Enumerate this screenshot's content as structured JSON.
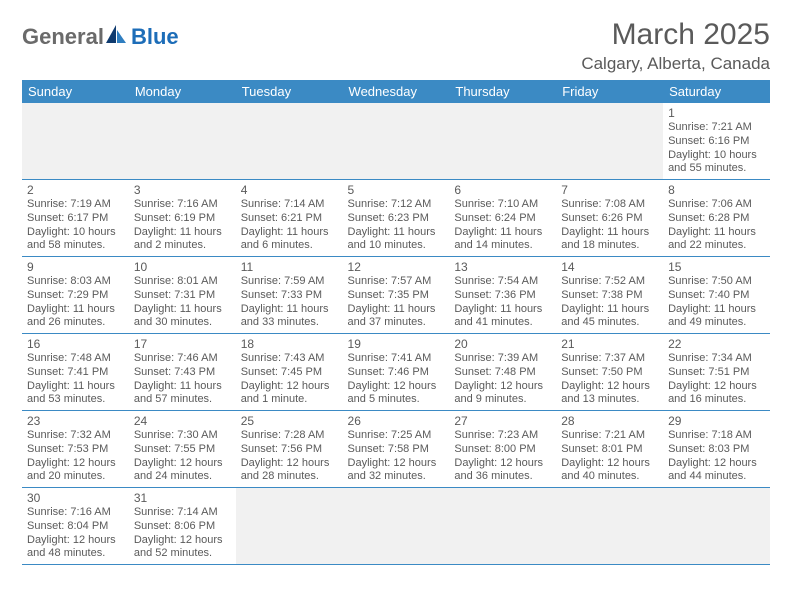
{
  "logo": {
    "word1": "General",
    "word2": "Blue"
  },
  "title": "March 2025",
  "subtitle": "Calgary, Alberta, Canada",
  "colors": {
    "header_bg": "#3b8ac4",
    "header_fg": "#ffffff",
    "text": "#5a5a5a",
    "rule": "#3b8ac4",
    "blank_bg": "#f1f1f1",
    "logo_gray": "#6a6a6a",
    "logo_blue": "#1d6db8"
  },
  "day_headers": [
    "Sunday",
    "Monday",
    "Tuesday",
    "Wednesday",
    "Thursday",
    "Friday",
    "Saturday"
  ],
  "weeks": [
    [
      null,
      null,
      null,
      null,
      null,
      null,
      {
        "d": "1",
        "sr": "Sunrise: 7:21 AM",
        "ss": "Sunset: 6:16 PM",
        "dl1": "Daylight: 10 hours",
        "dl2": "and 55 minutes."
      }
    ],
    [
      {
        "d": "2",
        "sr": "Sunrise: 7:19 AM",
        "ss": "Sunset: 6:17 PM",
        "dl1": "Daylight: 10 hours",
        "dl2": "and 58 minutes."
      },
      {
        "d": "3",
        "sr": "Sunrise: 7:16 AM",
        "ss": "Sunset: 6:19 PM",
        "dl1": "Daylight: 11 hours",
        "dl2": "and 2 minutes."
      },
      {
        "d": "4",
        "sr": "Sunrise: 7:14 AM",
        "ss": "Sunset: 6:21 PM",
        "dl1": "Daylight: 11 hours",
        "dl2": "and 6 minutes."
      },
      {
        "d": "5",
        "sr": "Sunrise: 7:12 AM",
        "ss": "Sunset: 6:23 PM",
        "dl1": "Daylight: 11 hours",
        "dl2": "and 10 minutes."
      },
      {
        "d": "6",
        "sr": "Sunrise: 7:10 AM",
        "ss": "Sunset: 6:24 PM",
        "dl1": "Daylight: 11 hours",
        "dl2": "and 14 minutes."
      },
      {
        "d": "7",
        "sr": "Sunrise: 7:08 AM",
        "ss": "Sunset: 6:26 PM",
        "dl1": "Daylight: 11 hours",
        "dl2": "and 18 minutes."
      },
      {
        "d": "8",
        "sr": "Sunrise: 7:06 AM",
        "ss": "Sunset: 6:28 PM",
        "dl1": "Daylight: 11 hours",
        "dl2": "and 22 minutes."
      }
    ],
    [
      {
        "d": "9",
        "sr": "Sunrise: 8:03 AM",
        "ss": "Sunset: 7:29 PM",
        "dl1": "Daylight: 11 hours",
        "dl2": "and 26 minutes."
      },
      {
        "d": "10",
        "sr": "Sunrise: 8:01 AM",
        "ss": "Sunset: 7:31 PM",
        "dl1": "Daylight: 11 hours",
        "dl2": "and 30 minutes."
      },
      {
        "d": "11",
        "sr": "Sunrise: 7:59 AM",
        "ss": "Sunset: 7:33 PM",
        "dl1": "Daylight: 11 hours",
        "dl2": "and 33 minutes."
      },
      {
        "d": "12",
        "sr": "Sunrise: 7:57 AM",
        "ss": "Sunset: 7:35 PM",
        "dl1": "Daylight: 11 hours",
        "dl2": "and 37 minutes."
      },
      {
        "d": "13",
        "sr": "Sunrise: 7:54 AM",
        "ss": "Sunset: 7:36 PM",
        "dl1": "Daylight: 11 hours",
        "dl2": "and 41 minutes."
      },
      {
        "d": "14",
        "sr": "Sunrise: 7:52 AM",
        "ss": "Sunset: 7:38 PM",
        "dl1": "Daylight: 11 hours",
        "dl2": "and 45 minutes."
      },
      {
        "d": "15",
        "sr": "Sunrise: 7:50 AM",
        "ss": "Sunset: 7:40 PM",
        "dl1": "Daylight: 11 hours",
        "dl2": "and 49 minutes."
      }
    ],
    [
      {
        "d": "16",
        "sr": "Sunrise: 7:48 AM",
        "ss": "Sunset: 7:41 PM",
        "dl1": "Daylight: 11 hours",
        "dl2": "and 53 minutes."
      },
      {
        "d": "17",
        "sr": "Sunrise: 7:46 AM",
        "ss": "Sunset: 7:43 PM",
        "dl1": "Daylight: 11 hours",
        "dl2": "and 57 minutes."
      },
      {
        "d": "18",
        "sr": "Sunrise: 7:43 AM",
        "ss": "Sunset: 7:45 PM",
        "dl1": "Daylight: 12 hours",
        "dl2": "and 1 minute."
      },
      {
        "d": "19",
        "sr": "Sunrise: 7:41 AM",
        "ss": "Sunset: 7:46 PM",
        "dl1": "Daylight: 12 hours",
        "dl2": "and 5 minutes."
      },
      {
        "d": "20",
        "sr": "Sunrise: 7:39 AM",
        "ss": "Sunset: 7:48 PM",
        "dl1": "Daylight: 12 hours",
        "dl2": "and 9 minutes."
      },
      {
        "d": "21",
        "sr": "Sunrise: 7:37 AM",
        "ss": "Sunset: 7:50 PM",
        "dl1": "Daylight: 12 hours",
        "dl2": "and 13 minutes."
      },
      {
        "d": "22",
        "sr": "Sunrise: 7:34 AM",
        "ss": "Sunset: 7:51 PM",
        "dl1": "Daylight: 12 hours",
        "dl2": "and 16 minutes."
      }
    ],
    [
      {
        "d": "23",
        "sr": "Sunrise: 7:32 AM",
        "ss": "Sunset: 7:53 PM",
        "dl1": "Daylight: 12 hours",
        "dl2": "and 20 minutes."
      },
      {
        "d": "24",
        "sr": "Sunrise: 7:30 AM",
        "ss": "Sunset: 7:55 PM",
        "dl1": "Daylight: 12 hours",
        "dl2": "and 24 minutes."
      },
      {
        "d": "25",
        "sr": "Sunrise: 7:28 AM",
        "ss": "Sunset: 7:56 PM",
        "dl1": "Daylight: 12 hours",
        "dl2": "and 28 minutes."
      },
      {
        "d": "26",
        "sr": "Sunrise: 7:25 AM",
        "ss": "Sunset: 7:58 PM",
        "dl1": "Daylight: 12 hours",
        "dl2": "and 32 minutes."
      },
      {
        "d": "27",
        "sr": "Sunrise: 7:23 AM",
        "ss": "Sunset: 8:00 PM",
        "dl1": "Daylight: 12 hours",
        "dl2": "and 36 minutes."
      },
      {
        "d": "28",
        "sr": "Sunrise: 7:21 AM",
        "ss": "Sunset: 8:01 PM",
        "dl1": "Daylight: 12 hours",
        "dl2": "and 40 minutes."
      },
      {
        "d": "29",
        "sr": "Sunrise: 7:18 AM",
        "ss": "Sunset: 8:03 PM",
        "dl1": "Daylight: 12 hours",
        "dl2": "and 44 minutes."
      }
    ],
    [
      {
        "d": "30",
        "sr": "Sunrise: 7:16 AM",
        "ss": "Sunset: 8:04 PM",
        "dl1": "Daylight: 12 hours",
        "dl2": "and 48 minutes."
      },
      {
        "d": "31",
        "sr": "Sunrise: 7:14 AM",
        "ss": "Sunset: 8:06 PM",
        "dl1": "Daylight: 12 hours",
        "dl2": "and 52 minutes."
      },
      null,
      null,
      null,
      null,
      null
    ]
  ]
}
